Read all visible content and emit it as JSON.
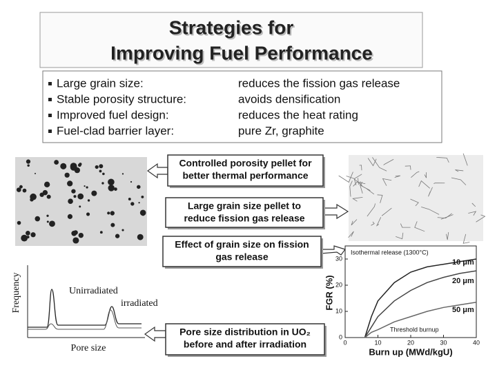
{
  "header": {
    "title_lines": [
      "Strategies for",
      "Improving Fuel Performance"
    ]
  },
  "bullets": [
    {
      "item": "Large grain size:",
      "effect": "reduces the fission gas release"
    },
    {
      "item": "Stable porosity structure:",
      "effect": "avoids densification"
    },
    {
      "item": "Improved fuel design:",
      "effect": "reduces the heat rating"
    },
    {
      "item": "Fuel-clad barrier layer:",
      "effect": "pure Zr, graphite"
    }
  ],
  "callouts": [
    {
      "lines": [
        "Controlled porosity pellet for",
        "better thermal performance"
      ]
    },
    {
      "lines": [
        "Large grain size pellet to",
        "reduce fission gas release"
      ]
    },
    {
      "lines": [
        "Effect of grain size on fission",
        "gas release"
      ]
    },
    {
      "lines": [
        "Pore size distribution in UO₂",
        "before and after irradiation"
      ]
    }
  ],
  "pore_plot": {
    "y_label": "Frequency",
    "x_label": "Pore size",
    "labels": [
      "Unirradiated",
      "irradiated"
    ]
  },
  "chart_data": {
    "type": "line",
    "annotation": "Isothermal release (1300°C)",
    "threshold_label": "Threshold burnup",
    "x_label": "Burn up (MWd/kgU)",
    "y_label": "FGR (%)",
    "x": [
      6,
      8,
      10,
      15,
      20,
      25,
      30,
      35,
      40
    ],
    "series": [
      {
        "name": "10 μm",
        "color": "#222222",
        "values": [
          0,
          8,
          14,
          21,
          25,
          27,
          28,
          29,
          30
        ]
      },
      {
        "name": "20 μm",
        "color": "#444444",
        "values": [
          0,
          4,
          8,
          14,
          18,
          21,
          23,
          24.5,
          25.5
        ]
      },
      {
        "name": "50 μm",
        "color": "#666666",
        "values": [
          0,
          2,
          3,
          6,
          8,
          10,
          11.5,
          12.5,
          13.5
        ]
      }
    ],
    "xlim": [
      0,
      40
    ],
    "ylim": [
      0,
      35
    ],
    "xticks": [
      0,
      10,
      20,
      30,
      40
    ],
    "yticks": [
      0,
      10,
      20,
      30
    ]
  }
}
